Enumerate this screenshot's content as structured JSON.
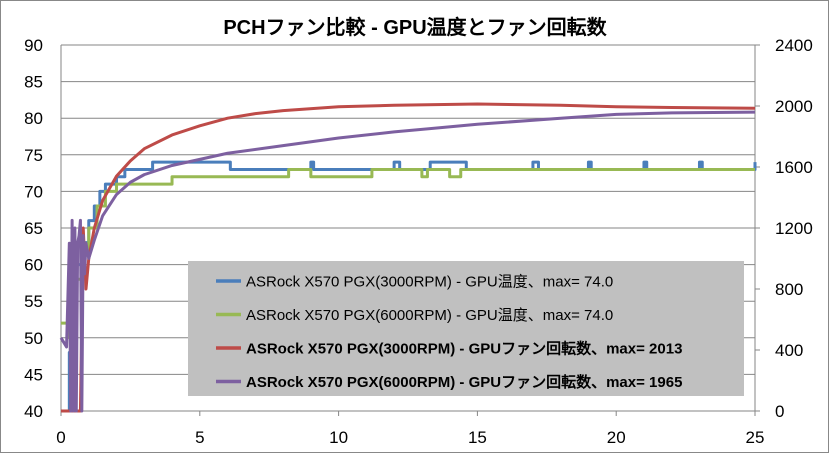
{
  "chart_data": {
    "type": "line",
    "title": "PCHファン比較 - GPU温度とファン回転数",
    "xlabel": "",
    "ylabel": "",
    "y2label": "",
    "xlim": [
      0,
      25
    ],
    "ylim": [
      40,
      90
    ],
    "y2lim": [
      0,
      2400
    ],
    "xticks": [
      "0",
      "5",
      "10",
      "15",
      "20",
      "25"
    ],
    "yticks": [
      "40",
      "45",
      "50",
      "55",
      "60",
      "65",
      "70",
      "75",
      "80",
      "85",
      "90"
    ],
    "y2ticks": [
      "0",
      "400",
      "800",
      "1200",
      "1600",
      "2000",
      "2400"
    ],
    "grid": true,
    "legend_position": "center-right",
    "series": [
      {
        "name": "ASRock X570 PGX(3000RPM) - GPU温度、max= 74.0",
        "axis": "left",
        "color": "#4a7ebb",
        "bold": false,
        "step": true,
        "x": [
          0,
          0.25,
          0.3,
          0.5,
          0.8,
          1.0,
          1.2,
          1.4,
          1.6,
          2.0,
          2.3,
          3.0,
          3.3,
          6,
          6.1,
          9,
          9.1,
          12,
          12.2,
          13,
          13.3,
          14.5,
          14.6,
          17,
          17.2,
          19,
          19.1,
          21,
          21.1,
          23,
          23.1,
          25
        ],
        "y": [
          40,
          40,
          48,
          60,
          63,
          66,
          68,
          70,
          71,
          72,
          73,
          73,
          74,
          74,
          73,
          74,
          73,
          74,
          73,
          73,
          74,
          74,
          73,
          74,
          73,
          74,
          73,
          74,
          73,
          74,
          73,
          74
        ]
      },
      {
        "name": "ASRock X570 PGX(6000RPM) - GPU温度、max= 74.0",
        "axis": "left",
        "color": "#98b954",
        "bold": false,
        "step": true,
        "x": [
          0,
          0.2,
          0.3,
          0.5,
          0.8,
          1.0,
          1.3,
          1.6,
          2.0,
          2.3,
          4.0,
          8,
          8.2,
          9,
          11,
          11.2,
          13,
          13.2,
          14,
          14.4,
          16,
          18,
          20,
          22,
          24,
          25
        ],
        "y": [
          52,
          52,
          50,
          58,
          62,
          65,
          68,
          70,
          71,
          71,
          72,
          72,
          73,
          72,
          72,
          73,
          72,
          73,
          72,
          73,
          73,
          73,
          73,
          73,
          73,
          73
        ]
      },
      {
        "name": "ASRock X570 PGX(3000RPM) - GPUファン回転数、max= 2013",
        "axis": "right",
        "color": "#be4b48",
        "bold": true,
        "step": false,
        "x": [
          0,
          0.6,
          0.7,
          0.8,
          0.9,
          1.0,
          1.2,
          1.5,
          2.0,
          2.5,
          3,
          4,
          5,
          6,
          7,
          8,
          10,
          12,
          15,
          18,
          20,
          22,
          25
        ],
        "y": [
          0,
          0,
          0,
          1200,
          800,
          1000,
          1200,
          1380,
          1540,
          1640,
          1720,
          1810,
          1870,
          1920,
          1950,
          1970,
          1995,
          2005,
          2013,
          2005,
          1995,
          1990,
          1985
        ]
      },
      {
        "name": "ASRock X570 PGX(6000RPM) - GPUファン回転数、max= 1965",
        "axis": "right",
        "color": "#7d60a0",
        "bold": true,
        "step": false,
        "x": [
          0,
          0.2,
          0.3,
          0.35,
          0.4,
          0.45,
          0.5,
          0.55,
          0.6,
          0.65,
          0.7,
          0.75,
          0.8,
          0.85,
          0.9,
          1.0,
          1.2,
          1.5,
          2,
          2.5,
          3,
          4,
          5,
          6,
          8,
          10,
          12,
          15,
          18,
          20,
          22,
          25
        ],
        "y": [
          480,
          420,
          1100,
          0,
          1250,
          0,
          1200,
          0,
          1100,
          1150,
          1250,
          0,
          1150,
          900,
          1100,
          1000,
          1120,
          1280,
          1420,
          1500,
          1550,
          1610,
          1650,
          1690,
          1740,
          1790,
          1830,
          1880,
          1920,
          1945,
          1955,
          1960
        ]
      }
    ]
  }
}
